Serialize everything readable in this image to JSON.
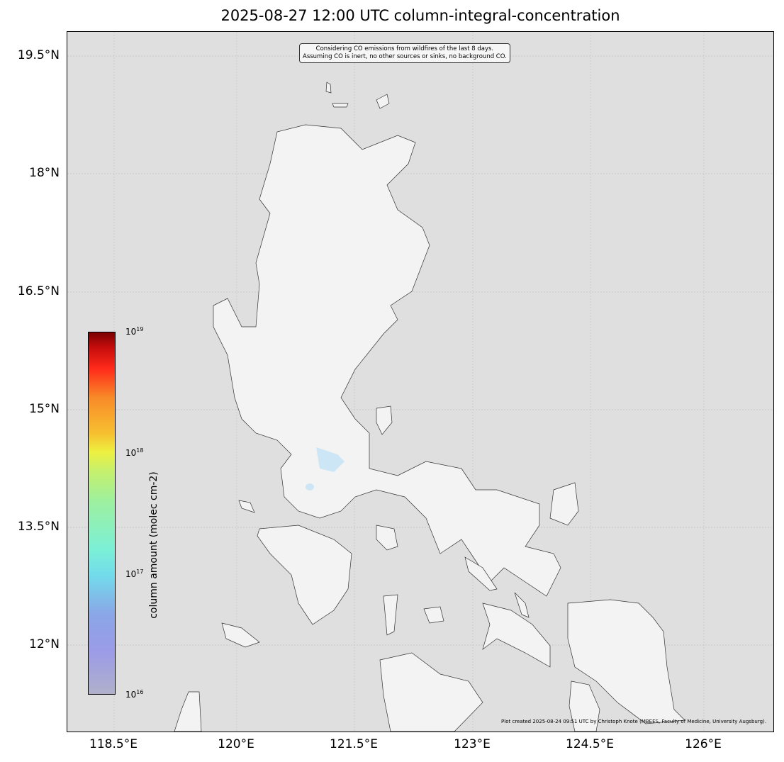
{
  "title": "2025-08-27 12:00 UTC column-integral-concentration",
  "axes": {
    "lat_ticks": [
      "19.5°N",
      "18°N",
      "16.5°N",
      "15°N",
      "13.5°N",
      "12°N"
    ],
    "lon_ticks": [
      "118.5°E",
      "120°E",
      "121.5°E",
      "123°E",
      "124.5°E",
      "126°E"
    ]
  },
  "annotation": {
    "line1": "Considering CO emissions from wildfires of the last 8 days.",
    "line2": "Assuming CO is inert, no other sources or sinks, no background CO."
  },
  "credit": "Plot created 2025-08-24 09:51 UTC by Christoph Knote (MBEES, Faculty of Medicine, University Augsburg).",
  "colorbar": {
    "label": "column amount (molec cm-2)",
    "scale": "log",
    "ticks": [
      {
        "base": "10",
        "exp": "19"
      },
      {
        "base": "10",
        "exp": "18"
      },
      {
        "base": "10",
        "exp": "17"
      },
      {
        "base": "10",
        "exp": "16"
      }
    ]
  },
  "colors": {
    "ocean": "#dfdfdf",
    "land": "#f3f3f3",
    "lakes": "#cde6f5",
    "coast": "#333333"
  }
}
